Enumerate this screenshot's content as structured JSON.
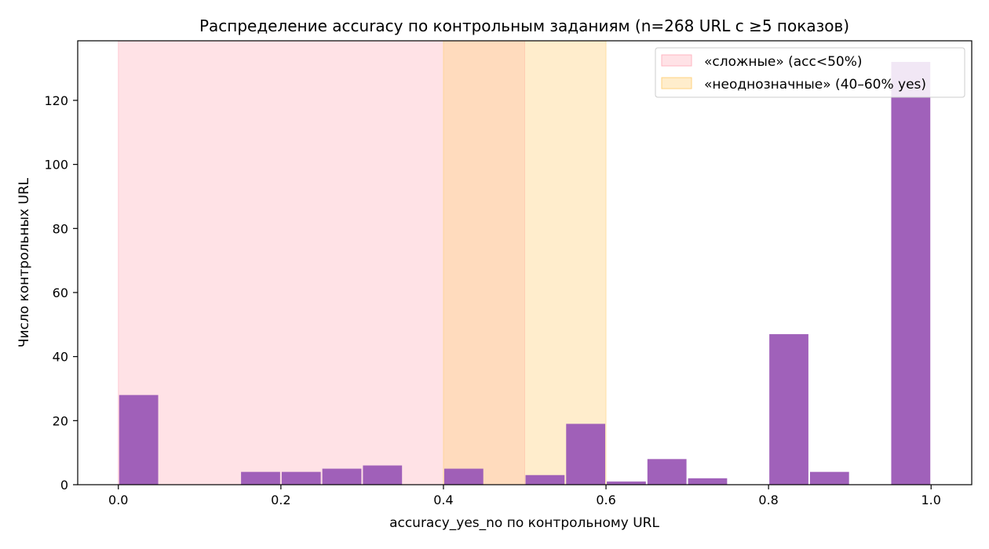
{
  "chart_data": {
    "type": "bar",
    "title": "Распределение accuracy по контрольным заданиям (n=268 URL с ≥5 показов)",
    "xlabel": "accuracy_yes_no по контрольному URL",
    "ylabel": "Число контрольных URL",
    "xlim": [
      -0.05,
      1.05
    ],
    "ylim": [
      0,
      138.6
    ],
    "xticks": [
      0.0,
      0.2,
      0.4,
      0.6,
      0.8,
      1.0
    ],
    "xtick_labels": [
      "0.0",
      "0.2",
      "0.4",
      "0.6",
      "0.8",
      "1.0"
    ],
    "yticks": [
      0,
      20,
      40,
      60,
      80,
      100,
      120
    ],
    "ytick_labels": [
      "0",
      "20",
      "40",
      "60",
      "80",
      "100",
      "120"
    ],
    "bin_width": 0.05,
    "bins": [
      {
        "start": 0.0,
        "count": 28
      },
      {
        "start": 0.15,
        "count": 4
      },
      {
        "start": 0.2,
        "count": 4
      },
      {
        "start": 0.25,
        "count": 5
      },
      {
        "start": 0.3,
        "count": 6
      },
      {
        "start": 0.4,
        "count": 5
      },
      {
        "start": 0.5,
        "count": 3
      },
      {
        "start": 0.55,
        "count": 19
      },
      {
        "start": 0.6,
        "count": 1
      },
      {
        "start": 0.65,
        "count": 8
      },
      {
        "start": 0.7,
        "count": 2
      },
      {
        "start": 0.8,
        "count": 47
      },
      {
        "start": 0.85,
        "count": 4
      },
      {
        "start": 0.95,
        "count": 132
      }
    ],
    "bar_color": "#9b59b6",
    "bands": [
      {
        "label": "«сложные» (acc<50%)",
        "from": 0.0,
        "to": 0.5,
        "color": "#ffb6c1"
      },
      {
        "label": "«неоднозначные» (40–60% yes)",
        "from": 0.4,
        "to": 0.6,
        "color": "#ffd27f"
      }
    ],
    "legend_position": "top-right",
    "grid": false
  }
}
